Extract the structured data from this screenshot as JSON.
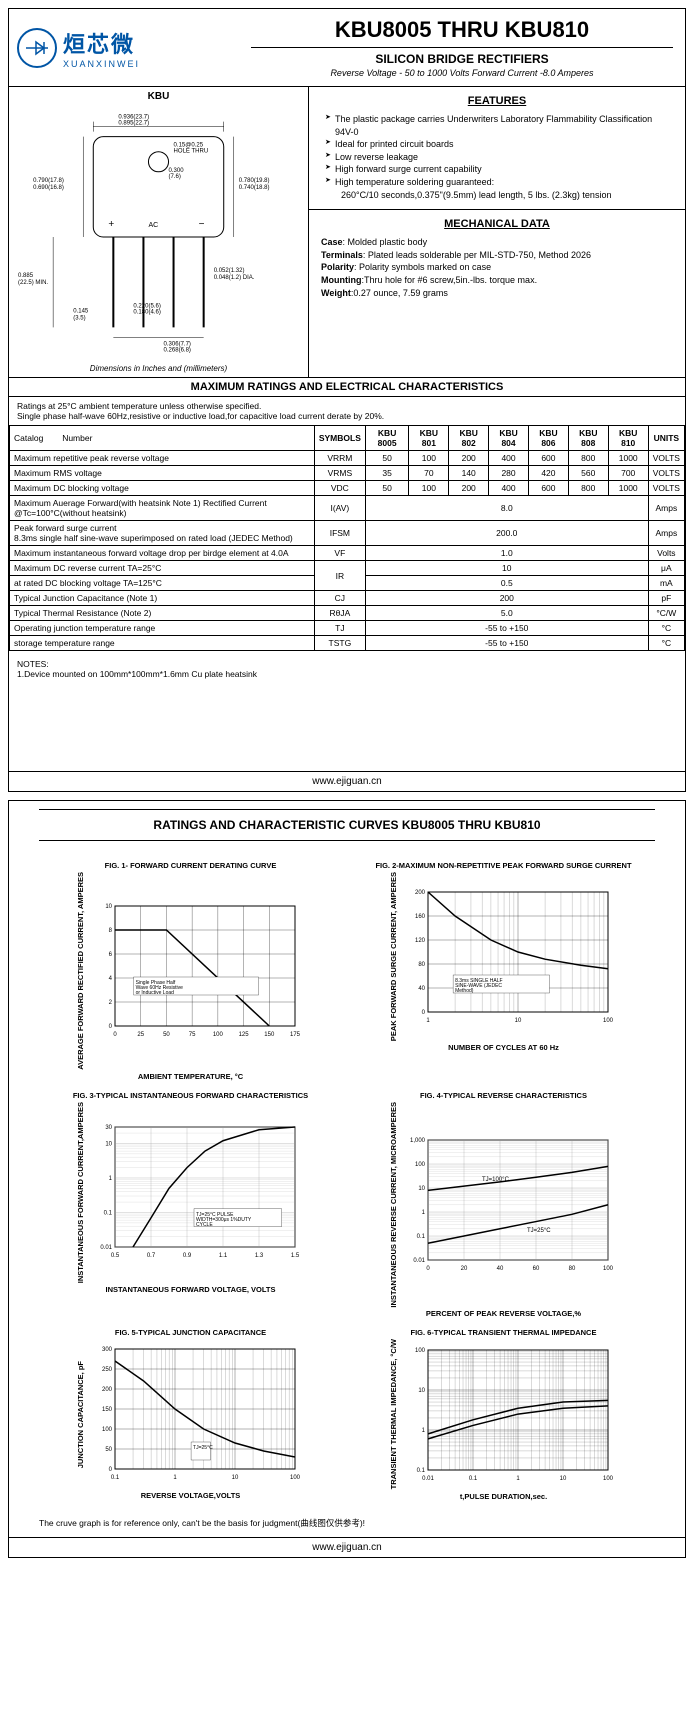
{
  "logo": {
    "cn": "烜芯微",
    "en": "XUANXINWEI",
    "icon": "xxw"
  },
  "header": {
    "title": "KBU8005 THRU KBU810",
    "subtitle": "SILICON BRIDGE RECTIFIERS",
    "subline": "Reverse Voltage - 50 to 1000 Volts    Forward Current -8.0 Amperes"
  },
  "diagram": {
    "label": "KBU",
    "dims": {
      "hole_thru": "0.15@0.25\n(3.8@(5,7),) HOLE THRU",
      "top_w": "0.936(23.7)\n0.895(22.7)",
      "inner_w": "0.300\n(7.6)",
      "left_h": "0.790(17.8)\n0.690(16.8)",
      "right_h": "0.780(19.8)\n0.740(18.8)",
      "pin_len": "0.885\n(22.5) MIN.",
      "pin_w": "0.052(1.32)\n0.048(1.2) DIA.",
      "pin_gap": "0.145\n(3.5)",
      "pitch1": "0.220(5.6)\n0.180(4.6)",
      "pitch2": "0.306(7.7)\n0.268(6.8)"
    },
    "ac_label": "AC",
    "note": "Dimensions in Inches and (millimeters)"
  },
  "features": {
    "heading": "FEATURES",
    "items": [
      "The plastic package carries Underwriters Laboratory Flammability Classification 94V-0",
      "Ideal for printed circuit boards",
      "Low reverse leakage",
      "High forward surge current capability",
      "High temperature soldering guaranteed:",
      "260°C/10 seconds,0.375\"(9.5mm) lead length, 5 lbs. (2.3kg) tension"
    ]
  },
  "mechanical": {
    "heading": "MECHANICAL DATA",
    "case": "Case: Molded plastic body",
    "terminals": "Terminals: Plated leads solderable per MIL-STD-750, Method 2026",
    "polarity": "Polarity: Polarity symbols marked on case",
    "mounting": "Mounting:Thru hole for #6 screw,5in.-lbs. torque max.",
    "weight": "Weight:0.27 ounce, 7.59 grams"
  },
  "ratings_title": "MAXIMUM RATINGS AND ELECTRICAL CHARACTERISTICS",
  "ratings_note": "Ratings at 25°C ambient temperature unless otherwise specified.\nSingle phase half-wave 60Hz,resistive or inductive load,for capacitive load current derate by 20%.",
  "table": {
    "headers": [
      "Catalog        Number",
      "SYMBOLS",
      "KBU 8005",
      "KBU 801",
      "KBU 802",
      "KBU 804",
      "KBU 806",
      "KBU 808",
      "KBU 810",
      "UNITS"
    ],
    "rows": [
      {
        "label": "Maximum repetitive peak reverse voltage",
        "sym": "VRRM",
        "vals": [
          "50",
          "100",
          "200",
          "400",
          "600",
          "800",
          "1000"
        ],
        "unit": "VOLTS"
      },
      {
        "label": "Maximum RMS voltage",
        "sym": "VRMS",
        "vals": [
          "35",
          "70",
          "140",
          "280",
          "420",
          "560",
          "700"
        ],
        "unit": "VOLTS"
      },
      {
        "label": "Maximum DC blocking voltage",
        "sym": "VDC",
        "vals": [
          "50",
          "100",
          "200",
          "400",
          "600",
          "800",
          "1000"
        ],
        "unit": "VOLTS"
      },
      {
        "label": "Maximum Auerage Forward(with heatsink Note 1) Rectified Current @Tc=100°C(without heatsink)",
        "sym": "I(AV)",
        "span": "8.0",
        "unit": "Amps"
      },
      {
        "label": "Peak forward surge current\n8.3ms single half sine-wave superimposed on rated load (JEDEC Method)",
        "sym": "IFSM",
        "span": "200.0",
        "unit": "Amps"
      },
      {
        "label": "Maximum instantaneous forward voltage drop per birdge element at 4.0A",
        "sym": "VF",
        "span": "1.0",
        "unit": "Volts"
      },
      {
        "label": "Maximum DC reverse current    TA=25°C",
        "sym_rowspan": "IR",
        "span": "10",
        "unit": "μA"
      },
      {
        "label": "at rated DC blocking voltage    TA=125°C",
        "span": "0.5",
        "unit": "mA"
      },
      {
        "label": "Typical Junction Capacitance (Note 1)",
        "sym": "CJ",
        "span": "200",
        "unit": "pF"
      },
      {
        "label": "Typical Thermal Resistance (Note 2)",
        "sym": "RθJA",
        "span": "5.0",
        "unit": "°C/W"
      },
      {
        "label": "Operating junction temperature range",
        "sym": "TJ",
        "span": "-55 to +150",
        "unit": "°C"
      },
      {
        "label": "storage temperature range",
        "sym": "TSTG",
        "span": "-55 to +150",
        "unit": "°C"
      }
    ]
  },
  "notes": "NOTES:\n1.Device mounted on 100mm*100mm*1.6mm Cu plate heatsink",
  "footer": "www.ejiguan.cn",
  "page2": {
    "title": "RATINGS AND CHARACTERISTIC CURVES KBU8005 THRU KBU810",
    "charts": [
      {
        "title": "FIG. 1- FORWARD CURRENT DERATING CURVE",
        "ylabel": "AVERAGE FORWARD RECTIFIED CURRENT, AMPERES",
        "xlabel": "AMBIENT TEMPERATURE, °C",
        "type": "line",
        "xlim": [
          0,
          175
        ],
        "ylim": [
          0,
          10
        ],
        "xticks": [
          0,
          25,
          50,
          75,
          100,
          125,
          150,
          175
        ],
        "yticks": [
          0,
          2,
          4,
          6,
          8,
          10
        ],
        "grid_color": "#000",
        "line_color": "#000",
        "line_width": 1.5,
        "data": [
          [
            0,
            8
          ],
          [
            50,
            8
          ],
          [
            150,
            0
          ]
        ],
        "annotation": "Single Phase Half Wave 60Hz Resistive or Inductive Load",
        "ann_pos": [
          20,
          3.5
        ]
      },
      {
        "title": "FIG. 2-MAXIMUM NON-REPETITIVE PEAK FORWARD SURGE CURRENT",
        "ylabel": "PEAK FORWARD SURGE CURRENT, AMPERES",
        "xlabel": "NUMBER OF CYCLES AT 60 Hz",
        "type": "semilogx",
        "xlim": [
          1,
          100
        ],
        "ylim": [
          0,
          200
        ],
        "xticks": [
          1,
          10,
          100
        ],
        "yticks": [
          0,
          40,
          80,
          120,
          160,
          200
        ],
        "grid_color": "#000",
        "line_color": "#000",
        "line_width": 1.5,
        "data": [
          [
            1,
            200
          ],
          [
            2,
            160
          ],
          [
            5,
            120
          ],
          [
            10,
            100
          ],
          [
            20,
            88
          ],
          [
            50,
            78
          ],
          [
            100,
            72
          ]
        ],
        "annotation": "8.3ms SINGLE HALF SINE-WAVE (JEDEC Method)",
        "ann_pos": [
          2,
          50
        ]
      },
      {
        "title": "FIG. 3-TYPICAL INSTANTANEOUS FORWARD CHARACTERISTICS",
        "ylabel": "INSTANTANEOUS FORWARD CURRENT,AMPERES",
        "xlabel": "INSTANTANEOUS FORWARD VOLTAGE, VOLTS",
        "type": "semilogy",
        "xlim": [
          0.5,
          1.5
        ],
        "ylim": [
          0.01,
          30
        ],
        "xticks": [
          0.5,
          0.7,
          0.9,
          1.1,
          1.3,
          1.5
        ],
        "yticks": [
          0.01,
          0.1,
          1,
          10,
          30
        ],
        "ytick_labels": [
          "0.01",
          "0.1",
          "1",
          "10",
          "30"
        ],
        "grid_color": "#999",
        "line_color": "#000",
        "line_width": 1.5,
        "data": [
          [
            0.6,
            0.01
          ],
          [
            0.7,
            0.07
          ],
          [
            0.8,
            0.5
          ],
          [
            0.9,
            2
          ],
          [
            1.0,
            6
          ],
          [
            1.1,
            12
          ],
          [
            1.3,
            25
          ],
          [
            1.5,
            30
          ]
        ],
        "annotation": "TJ=25°C PULSE WIDTH=300μs 1%DUTY CYCLE",
        "ann_pos": [
          0.95,
          0.08
        ]
      },
      {
        "title": "FIG. 4-TYPICAL REVERSE CHARACTERISTICS",
        "ylabel": "INSTANTANEOUS REVERSE CURRENT, MICROAMPERES",
        "xlabel": "PERCENT OF PEAK REVERSE VOLTAGE,%",
        "type": "semilogy",
        "xlim": [
          0,
          100
        ],
        "ylim": [
          0.01,
          1000
        ],
        "xticks": [
          0,
          20,
          40,
          60,
          80,
          100
        ],
        "yticks": [
          0.01,
          0.1,
          1,
          10,
          100,
          1000
        ],
        "ytick_labels": [
          "0.01",
          "0.1",
          "1",
          "10",
          "100",
          "1,000"
        ],
        "grid_color": "#999",
        "line_color": "#000",
        "line_width": 1.5,
        "series": [
          {
            "label": "TJ=100°C",
            "data": [
              [
                0,
                8
              ],
              [
                20,
                12
              ],
              [
                40,
                18
              ],
              [
                60,
                28
              ],
              [
                80,
                45
              ],
              [
                100,
                80
              ]
            ],
            "label_pos": [
              30,
              20
            ]
          },
          {
            "label": "TJ=25°C",
            "data": [
              [
                0,
                0.05
              ],
              [
                20,
                0.1
              ],
              [
                40,
                0.2
              ],
              [
                60,
                0.4
              ],
              [
                80,
                0.8
              ],
              [
                100,
                2
              ]
            ],
            "label_pos": [
              55,
              0.15
            ]
          }
        ]
      },
      {
        "title": "FIG. 5-TYPICAL JUNCTION CAPACITANCE",
        "ylabel": "JUNCTION CAPACITANCE, pF",
        "xlabel": "REVERSE VOLTAGE,VOLTS",
        "type": "semilogx",
        "xlim": [
          0.1,
          100
        ],
        "ylim": [
          0,
          300
        ],
        "xticks": [
          0.1,
          1,
          10,
          100
        ],
        "yticks": [
          0,
          50,
          100,
          150,
          200,
          250,
          300
        ],
        "grid_color": "#000",
        "line_color": "#000",
        "line_width": 1.5,
        "data": [
          [
            0.1,
            270
          ],
          [
            0.3,
            220
          ],
          [
            1,
            150
          ],
          [
            3,
            100
          ],
          [
            10,
            65
          ],
          [
            30,
            45
          ],
          [
            100,
            30
          ]
        ],
        "annotation": "TJ=25°C",
        "ann_pos": [
          2,
          50
        ]
      },
      {
        "title": "FIG. 6-TYPICAL TRANSIENT THERMAL IMPEDANCE",
        "ylabel": "TRANSIENT THERMAL IMPEDANCE, °C/W",
        "xlabel": "t,PULSE DURATION,sec.",
        "type": "loglog",
        "xlim": [
          0.01,
          100
        ],
        "ylim": [
          0.1,
          100
        ],
        "xticks": [
          0.01,
          0.1,
          1,
          10,
          100
        ],
        "yticks": [
          0.1,
          1,
          10,
          100
        ],
        "grid_color": "#000",
        "line_color": "#000",
        "line_width": 1.5,
        "series": [
          {
            "data": [
              [
                0.01,
                0.8
              ],
              [
                0.1,
                1.8
              ],
              [
                1,
                3.5
              ],
              [
                10,
                5
              ],
              [
                100,
                5.5
              ]
            ]
          },
          {
            "data": [
              [
                0.01,
                0.6
              ],
              [
                0.1,
                1.3
              ],
              [
                1,
                2.5
              ],
              [
                10,
                3.5
              ],
              [
                100,
                4
              ]
            ]
          }
        ]
      }
    ],
    "disclaimer": "The cruve graph is for reference only, can't be the basis for judgment(曲线图仅供参考)!"
  }
}
